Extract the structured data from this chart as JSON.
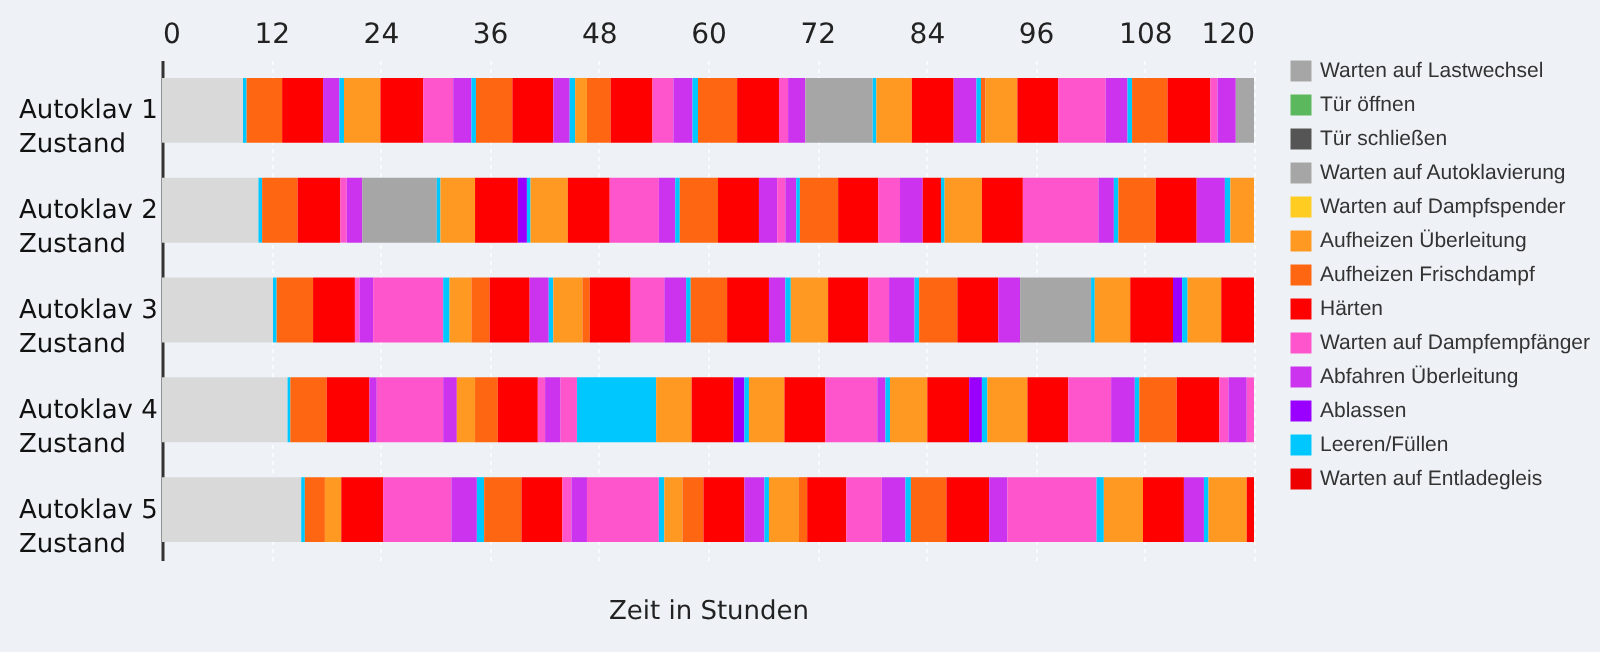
{
  "chart_data": {
    "type": "bar",
    "orientation": "horizontal",
    "stacked": true,
    "xlabel": "Zeit in Stunden",
    "categories": [
      "Autoklav 1\nZustand",
      "Autoklav 2\nZustand",
      "Autoklav 3\nZustand",
      "Autoklav 4\nZustand",
      "Autoklav 5\nZustand"
    ],
    "xlim": [
      0,
      120
    ],
    "xticks": [
      0,
      12,
      24,
      36,
      48,
      60,
      72,
      84,
      96,
      108,
      120
    ],
    "grid": "x",
    "legend": "right",
    "series": [
      {
        "color": "#d9d9d9",
        "values": [
          8.9,
          10.6,
          12.2,
          13.8,
          15.3
        ]
      },
      {
        "name": "Warten auf Lastwechsel",
        "color": "#a6a6a6",
        "values": [
          null,
          null,
          null,
          null,
          null
        ]
      },
      {
        "name": "Tür öffnen",
        "color": "#5cb85c",
        "values": [
          null,
          null,
          null,
          null,
          null
        ]
      },
      {
        "name": "Tür schließen",
        "color": "#555555",
        "values": [
          null,
          null,
          null,
          null,
          null
        ]
      },
      {
        "name": "Warten auf Autoklavierung",
        "color": "#a6a6a6",
        "values": [
          null,
          null,
          null,
          null,
          null
        ]
      },
      {
        "name": "Warten auf Dampfspender",
        "color": "#ffcc22",
        "values": [
          null,
          null,
          null,
          null,
          null
        ]
      },
      {
        "name": "Aufheizen Überleitung",
        "color": "#ff9922",
        "values": [
          null,
          null,
          null,
          null,
          null
        ]
      },
      {
        "name": "Aufheizen Frischdampf",
        "color": "#ff6611",
        "values": [
          null,
          null,
          null,
          null,
          null
        ]
      },
      {
        "name": "Härten",
        "color": "#ff0000",
        "values": [
          null,
          null,
          null,
          null,
          null
        ]
      },
      {
        "name": "Warten auf Dampfempfänger",
        "color": "#ff55cc",
        "values": [
          null,
          null,
          null,
          null,
          null
        ]
      },
      {
        "name": "Abfahren Überleitung",
        "color": "#cc33ee",
        "values": [
          null,
          null,
          null,
          null,
          null
        ]
      },
      {
        "name": "Ablassen",
        "color": "#9900ff",
        "values": [
          null,
          null,
          null,
          null,
          null
        ]
      },
      {
        "name": "Leeren/Füllen",
        "color": "#00c8ff",
        "values": [
          null,
          null,
          null,
          null,
          null
        ]
      },
      {
        "name": "Warten auf Entladegleis",
        "color": "#ee0000",
        "values": [
          null,
          null,
          null,
          null,
          null
        ]
      },
      {
        "color": "#00c8ff",
        "values": [
          0.4,
          null,
          null,
          null,
          null
        ]
      },
      {
        "color": "#ff6611",
        "values": [
          3.9,
          null,
          null,
          null,
          null
        ]
      },
      {
        "color": "#ff0000",
        "values": [
          4.5,
          null,
          null,
          null,
          null
        ]
      },
      {
        "color": "#cc33ee",
        "values": [
          1.8,
          null,
          null,
          null,
          null
        ]
      },
      {
        "color": "#00c8ff",
        "values": [
          0.5,
          null,
          null,
          null,
          null
        ]
      },
      {
        "color": "#ff9922",
        "values": [
          4.0,
          null,
          null,
          null,
          null
        ]
      },
      {
        "color": "#ff0000",
        "values": [
          4.7,
          null,
          null,
          null,
          null
        ]
      },
      {
        "color": "#ff55cc",
        "values": [
          3.3,
          null,
          null,
          null,
          null
        ]
      },
      {
        "color": "#cc33ee",
        "values": [
          2.0,
          null,
          null,
          null,
          null
        ]
      },
      {
        "color": "#00c8ff",
        "values": [
          0.5,
          null,
          null,
          null,
          null
        ]
      },
      {
        "color": "#ff6611",
        "values": [
          4.0,
          null,
          null,
          null,
          null
        ]
      },
      {
        "color": "#ff0000",
        "values": [
          4.5,
          null,
          null,
          null,
          null
        ]
      },
      {
        "color": "#cc33ee",
        "values": [
          1.8,
          null,
          null,
          null,
          null
        ]
      },
      {
        "color": "#00c8ff",
        "values": [
          0.6,
          null,
          null,
          null,
          null
        ]
      },
      {
        "color": "#ff9922",
        "values": [
          1.3,
          null,
          null,
          null,
          null
        ]
      },
      {
        "color": "#ff6611",
        "values": [
          2.6,
          null,
          null,
          null,
          null
        ]
      },
      {
        "color": "#ff0000",
        "values": [
          4.6,
          null,
          null,
          null,
          null
        ]
      },
      {
        "color": "#ff55cc",
        "values": [
          2.3,
          null,
          null,
          null,
          null
        ]
      },
      {
        "color": "#cc33ee",
        "values": [
          2.1,
          null,
          null,
          null,
          null
        ]
      },
      {
        "color": "#00c8ff",
        "values": [
          0.6,
          null,
          null,
          null,
          null
        ]
      },
      {
        "color": "#ff6611",
        "values": [
          4.3,
          null,
          null,
          null,
          null
        ]
      },
      {
        "color": "#ff0000",
        "values": [
          4.6,
          null,
          null,
          null,
          null
        ]
      },
      {
        "color": "#ff55cc",
        "values": [
          1.0,
          null,
          null,
          null,
          null
        ]
      },
      {
        "color": "#cc33ee",
        "values": [
          1.9,
          null,
          null,
          null,
          null
        ]
      },
      {
        "color": "#a6a6a6",
        "values": [
          7.4,
          null,
          null,
          null,
          null
        ]
      },
      {
        "color": "#00c8ff",
        "values": [
          0.4,
          null,
          null,
          null,
          null
        ]
      },
      {
        "color": "#ff9922",
        "values": [
          3.9,
          null,
          null,
          null,
          null
        ]
      },
      {
        "color": "#ff0000",
        "values": [
          4.6,
          null,
          null,
          null,
          null
        ]
      },
      {
        "color": "#cc33ee",
        "values": [
          2.5,
          null,
          null,
          null,
          null
        ]
      },
      {
        "color": "#00c8ff",
        "values": [
          0.5,
          null,
          null,
          null,
          null
        ]
      },
      {
        "color": "#ff6611",
        "values": [
          0.5,
          null,
          null,
          null,
          null
        ]
      },
      {
        "color": "#ff9922",
        "values": [
          3.5,
          null,
          null,
          null,
          null
        ]
      },
      {
        "color": "#ff0000",
        "values": [
          4.5,
          null,
          null,
          null,
          null
        ]
      },
      {
        "color": "#ff55cc",
        "values": [
          5.2,
          null,
          null,
          null,
          null
        ]
      },
      {
        "color": "#cc33ee",
        "values": [
          2.4,
          null,
          null,
          null,
          null
        ]
      },
      {
        "color": "#00c8ff",
        "values": [
          0.5,
          null,
          null,
          null,
          null
        ]
      },
      {
        "color": "#ff6611",
        "values": [
          3.9,
          null,
          null,
          null,
          null
        ]
      },
      {
        "color": "#ff0000",
        "values": [
          4.7,
          null,
          null,
          null,
          null
        ]
      },
      {
        "color": "#ff55cc",
        "values": [
          0.8,
          null,
          null,
          null,
          null
        ]
      },
      {
        "color": "#cc33ee",
        "values": [
          2.0,
          null,
          null,
          null,
          null
        ]
      },
      {
        "color": "#a6a6a6",
        "values": [
          2.0,
          null,
          null,
          null,
          null
        ]
      },
      {
        "color": "#00c8ff",
        "values": [
          null,
          0.4,
          null,
          null,
          null
        ]
      },
      {
        "color": "#ff6611",
        "values": [
          null,
          3.9,
          null,
          null,
          null
        ]
      },
      {
        "color": "#ff0000",
        "values": [
          null,
          4.7,
          null,
          null,
          null
        ]
      },
      {
        "color": "#ff55cc",
        "values": [
          null,
          0.7,
          null,
          null,
          null
        ]
      },
      {
        "color": "#cc33ee",
        "values": [
          null,
          1.7,
          null,
          null,
          null
        ]
      },
      {
        "color": "#a6a6a6",
        "values": [
          null,
          8.2,
          null,
          null,
          null
        ]
      },
      {
        "color": "#00c8ff",
        "values": [
          null,
          0.4,
          null,
          null,
          null
        ]
      },
      {
        "color": "#ff9922",
        "values": [
          null,
          3.8,
          null,
          null,
          null
        ]
      },
      {
        "color": "#ff0000",
        "values": [
          null,
          4.7,
          null,
          null,
          null
        ]
      },
      {
        "color": "#9900ff",
        "values": [
          null,
          1.0,
          null,
          null,
          null
        ]
      },
      {
        "color": "#00c8ff",
        "values": [
          null,
          0.4,
          null,
          null,
          null
        ]
      },
      {
        "color": "#ff9922",
        "values": [
          null,
          4.1,
          null,
          null,
          null
        ]
      },
      {
        "color": "#ff0000",
        "values": [
          null,
          4.6,
          null,
          null,
          null
        ]
      },
      {
        "color": "#ff55cc",
        "values": [
          null,
          5.4,
          null,
          null,
          null
        ]
      },
      {
        "color": "#cc33ee",
        "values": [
          null,
          1.8,
          null,
          null,
          null
        ]
      },
      {
        "color": "#00c8ff",
        "values": [
          null,
          0.5,
          null,
          null,
          null
        ]
      },
      {
        "color": "#ff6611",
        "values": [
          null,
          4.2,
          null,
          null,
          null
        ]
      },
      {
        "color": "#ff0000",
        "values": [
          null,
          4.5,
          null,
          null,
          null
        ]
      },
      {
        "color": "#cc33ee",
        "values": [
          null,
          2.0,
          null,
          null,
          null
        ]
      },
      {
        "color": "#ff55cc",
        "values": [
          null,
          0.9,
          null,
          null,
          null
        ]
      },
      {
        "color": "#cc33ee",
        "values": [
          null,
          1.2,
          null,
          null,
          null
        ]
      },
      {
        "color": "#00c8ff",
        "values": [
          null,
          0.4,
          null,
          null,
          null
        ]
      },
      {
        "color": "#ff6611",
        "values": [
          null,
          4.2,
          null,
          null,
          null
        ]
      },
      {
        "color": "#ff0000",
        "values": [
          null,
          4.4,
          null,
          null,
          null
        ]
      },
      {
        "color": "#ff55cc",
        "values": [
          null,
          2.4,
          null,
          null,
          null
        ]
      },
      {
        "color": "#cc33ee",
        "values": [
          null,
          2.5,
          null,
          null,
          null
        ]
      },
      {
        "color": "#ff0000",
        "values": [
          null,
          2.0,
          null,
          null,
          null
        ]
      },
      {
        "color": "#00c8ff",
        "values": [
          null,
          0.4,
          null,
          null,
          null
        ]
      },
      {
        "color": "#ff9922",
        "values": [
          null,
          4.1,
          null,
          null,
          null
        ]
      },
      {
        "color": "#ff0000",
        "values": [
          null,
          4.5,
          null,
          null,
          null
        ]
      },
      {
        "color": "#ff55cc",
        "values": [
          null,
          8.3,
          null,
          null,
          null
        ]
      },
      {
        "color": "#cc33ee",
        "values": [
          null,
          1.7,
          null,
          null,
          null
        ]
      },
      {
        "color": "#00c8ff",
        "values": [
          null,
          0.5,
          null,
          null,
          null
        ]
      },
      {
        "color": "#ff6611",
        "values": [
          null,
          4.1,
          null,
          null,
          null
        ]
      },
      {
        "color": "#ff0000",
        "values": [
          null,
          4.5,
          null,
          null,
          null
        ]
      },
      {
        "color": "#cc33ee",
        "values": [
          null,
          3.1,
          null,
          null,
          null
        ]
      },
      {
        "color": "#00c8ff",
        "values": [
          null,
          0.6,
          null,
          null,
          null
        ]
      },
      {
        "color": "#ff9922",
        "values": [
          null,
          2.6,
          null,
          null,
          null
        ]
      },
      {
        "color": "#00c8ff",
        "values": [
          null,
          null,
          0.4,
          null,
          null
        ]
      },
      {
        "color": "#ff6611",
        "values": [
          null,
          null,
          4.0,
          null,
          null
        ]
      },
      {
        "color": "#ff0000",
        "values": [
          null,
          null,
          4.6,
          null,
          null
        ]
      },
      {
        "color": "#ff55cc",
        "values": [
          null,
          null,
          0.5,
          null,
          null
        ]
      },
      {
        "color": "#cc33ee",
        "values": [
          null,
          null,
          1.5,
          null,
          null
        ]
      },
      {
        "color": "#ff55cc",
        "values": [
          null,
          null,
          7.7,
          null,
          null
        ]
      },
      {
        "color": "#00c8ff",
        "values": [
          null,
          null,
          0.7,
          null,
          null
        ]
      },
      {
        "color": "#ff9922",
        "values": [
          null,
          null,
          2.4,
          null,
          null
        ]
      },
      {
        "color": "#ff6611",
        "values": [
          null,
          null,
          2.0,
          null,
          null
        ]
      },
      {
        "color": "#ff0000",
        "values": [
          null,
          null,
          4.4,
          null,
          null
        ]
      },
      {
        "color": "#cc33ee",
        "values": [
          null,
          null,
          2.1,
          null,
          null
        ]
      },
      {
        "color": "#00c8ff",
        "values": [
          null,
          null,
          0.5,
          null,
          null
        ]
      },
      {
        "color": "#ff9922",
        "values": [
          null,
          null,
          3.2,
          null,
          null
        ]
      },
      {
        "color": "#ff6611",
        "values": [
          null,
          null,
          0.8,
          null,
          null
        ]
      },
      {
        "color": "#ff0000",
        "values": [
          null,
          null,
          4.5,
          null,
          null
        ]
      },
      {
        "color": "#ff55cc",
        "values": [
          null,
          null,
          3.7,
          null,
          null
        ]
      },
      {
        "color": "#cc33ee",
        "values": [
          null,
          null,
          2.4,
          null,
          null
        ]
      },
      {
        "color": "#00c8ff",
        "values": [
          null,
          null,
          0.5,
          null,
          null
        ]
      },
      {
        "color": "#ff6611",
        "values": [
          null,
          null,
          4.0,
          null,
          null
        ]
      },
      {
        "color": "#ff0000",
        "values": [
          null,
          null,
          4.6,
          null,
          null
        ]
      },
      {
        "color": "#cc33ee",
        "values": [
          null,
          null,
          1.8,
          null,
          null
        ]
      },
      {
        "color": "#00c8ff",
        "values": [
          null,
          null,
          0.6,
          null,
          null
        ]
      },
      {
        "color": "#ff9922",
        "values": [
          null,
          null,
          4.1,
          null,
          null
        ]
      },
      {
        "color": "#ff0000",
        "values": [
          null,
          null,
          4.4,
          null,
          null
        ]
      },
      {
        "color": "#ff55cc",
        "values": [
          null,
          null,
          2.3,
          null,
          null
        ]
      },
      {
        "color": "#cc33ee",
        "values": [
          null,
          null,
          2.8,
          null,
          null
        ]
      },
      {
        "color": "#00c8ff",
        "values": [
          null,
          null,
          0.5,
          null,
          null
        ]
      },
      {
        "color": "#ff6611",
        "values": [
          null,
          null,
          4.2,
          null,
          null
        ]
      },
      {
        "color": "#ff0000",
        "values": [
          null,
          null,
          4.5,
          null,
          null
        ]
      },
      {
        "color": "#cc33ee",
        "values": [
          null,
          null,
          2.4,
          null,
          null
        ]
      },
      {
        "color": "#a6a6a6",
        "values": [
          null,
          null,
          7.8,
          null,
          null
        ]
      },
      {
        "color": "#00c8ff",
        "values": [
          null,
          null,
          0.4,
          null,
          null
        ]
      },
      {
        "color": "#ff9922",
        "values": [
          null,
          null,
          3.9,
          null,
          null
        ]
      },
      {
        "color": "#ff0000",
        "values": [
          null,
          null,
          4.7,
          null,
          null
        ]
      },
      {
        "color": "#9900ff",
        "values": [
          null,
          null,
          1.0,
          null,
          null
        ]
      },
      {
        "color": "#00c8ff",
        "values": [
          null,
          null,
          0.6,
          null,
          null
        ]
      },
      {
        "color": "#ff9922",
        "values": [
          null,
          null,
          3.7,
          null,
          null
        ]
      },
      {
        "color": "#ff0000",
        "values": [
          null,
          null,
          3.6,
          null,
          null
        ]
      },
      {
        "color": "#00c8ff",
        "values": [
          null,
          null,
          null,
          0.3,
          null
        ]
      },
      {
        "color": "#ff6611",
        "values": [
          null,
          null,
          null,
          4.0,
          null
        ]
      },
      {
        "color": "#ff0000",
        "values": [
          null,
          null,
          null,
          4.7,
          null
        ]
      },
      {
        "color": "#cc33ee",
        "values": [
          null,
          null,
          null,
          0.8,
          null
        ]
      },
      {
        "color": "#ff55cc",
        "values": [
          null,
          null,
          null,
          7.3,
          null
        ]
      },
      {
        "color": "#cc33ee",
        "values": [
          null,
          null,
          null,
          1.5,
          null
        ]
      },
      {
        "color": "#ff9922",
        "values": [
          null,
          null,
          null,
          2.0,
          null
        ]
      },
      {
        "color": "#ff6611",
        "values": [
          null,
          null,
          null,
          2.5,
          null
        ]
      },
      {
        "color": "#ff0000",
        "values": [
          null,
          null,
          null,
          4.4,
          null
        ]
      },
      {
        "color": "#ff55cc",
        "values": [
          null,
          null,
          null,
          0.8,
          null
        ]
      },
      {
        "color": "#cc33ee",
        "values": [
          null,
          null,
          null,
          1.7,
          null
        ]
      },
      {
        "color": "#ff55cc",
        "values": [
          null,
          null,
          null,
          1.8,
          null
        ]
      },
      {
        "color": "#00c8ff",
        "values": [
          null,
          null,
          null,
          8.7,
          null
        ]
      },
      {
        "color": "#ff9922",
        "values": [
          null,
          null,
          null,
          3.9,
          null
        ]
      },
      {
        "color": "#ff0000",
        "values": [
          null,
          null,
          null,
          4.6,
          null
        ]
      },
      {
        "color": "#9900ff",
        "values": [
          null,
          null,
          null,
          1.2,
          null
        ]
      },
      {
        "color": "#00c8ff",
        "values": [
          null,
          null,
          null,
          0.5,
          null
        ]
      },
      {
        "color": "#ff9922",
        "values": [
          null,
          null,
          null,
          3.9,
          null
        ]
      },
      {
        "color": "#ff0000",
        "values": [
          null,
          null,
          null,
          4.5,
          null
        ]
      },
      {
        "color": "#ff55cc",
        "values": [
          null,
          null,
          null,
          5.7,
          null
        ]
      },
      {
        "color": "#cc33ee",
        "values": [
          null,
          null,
          null,
          0.9,
          null
        ]
      },
      {
        "color": "#00c8ff",
        "values": [
          null,
          null,
          null,
          0.5,
          null
        ]
      },
      {
        "color": "#ff9922",
        "values": [
          null,
          null,
          null,
          4.1,
          null
        ]
      },
      {
        "color": "#ff0000",
        "values": [
          null,
          null,
          null,
          4.6,
          null
        ]
      },
      {
        "color": "#9900ff",
        "values": [
          null,
          null,
          null,
          1.4,
          null
        ]
      },
      {
        "color": "#00c8ff",
        "values": [
          null,
          null,
          null,
          0.6,
          null
        ]
      },
      {
        "color": "#ff9922",
        "values": [
          null,
          null,
          null,
          4.4,
          null
        ]
      },
      {
        "color": "#ff0000",
        "values": [
          null,
          null,
          null,
          4.5,
          null
        ]
      },
      {
        "color": "#ff55cc",
        "values": [
          null,
          null,
          null,
          4.7,
          null
        ]
      },
      {
        "color": "#cc33ee",
        "values": [
          null,
          null,
          null,
          2.6,
          null
        ]
      },
      {
        "color": "#00c8ff",
        "values": [
          null,
          null,
          null,
          0.5,
          null
        ]
      },
      {
        "color": "#ff6611",
        "values": [
          null,
          null,
          null,
          4.1,
          null
        ]
      },
      {
        "color": "#ff0000",
        "values": [
          null,
          null,
          null,
          4.7,
          null
        ]
      },
      {
        "color": "#ff55cc",
        "values": [
          null,
          null,
          null,
          1.0,
          null
        ]
      },
      {
        "color": "#cc33ee",
        "values": [
          null,
          null,
          null,
          2.0,
          null
        ]
      },
      {
        "color": "#ff55cc",
        "values": [
          null,
          null,
          null,
          0.8,
          null
        ]
      },
      {
        "color": "#00c8ff",
        "values": [
          null,
          null,
          null,
          null,
          0.4
        ]
      },
      {
        "color": "#ff6611",
        "values": [
          null,
          null,
          null,
          null,
          2.2
        ]
      },
      {
        "color": "#ff9922",
        "values": [
          null,
          null,
          null,
          null,
          1.8
        ]
      },
      {
        "color": "#ff0000",
        "values": [
          null,
          null,
          null,
          null,
          4.6
        ]
      },
      {
        "color": "#ff55cc",
        "values": [
          null,
          null,
          null,
          null,
          7.5
        ]
      },
      {
        "color": "#cc33ee",
        "values": [
          null,
          null,
          null,
          null,
          2.8
        ]
      },
      {
        "color": "#00c8ff",
        "values": [
          null,
          null,
          null,
          null,
          0.8
        ]
      },
      {
        "color": "#ff6611",
        "values": [
          null,
          null,
          null,
          null,
          4.1
        ]
      },
      {
        "color": "#ff0000",
        "values": [
          null,
          null,
          null,
          null,
          4.5
        ]
      },
      {
        "color": "#ff55cc",
        "values": [
          null,
          null,
          null,
          null,
          1.0
        ]
      },
      {
        "color": "#cc33ee",
        "values": [
          null,
          null,
          null,
          null,
          1.7
        ]
      },
      {
        "color": "#ff55cc",
        "values": [
          null,
          null,
          null,
          null,
          7.9
        ]
      },
      {
        "color": "#00c8ff",
        "values": [
          null,
          null,
          null,
          null,
          0.6
        ]
      },
      {
        "color": "#ff9922",
        "values": [
          null,
          null,
          null,
          null,
          2.0
        ]
      },
      {
        "color": "#ff6611",
        "values": [
          null,
          null,
          null,
          null,
          2.3
        ]
      },
      {
        "color": "#ff0000",
        "values": [
          null,
          null,
          null,
          null,
          4.5
        ]
      },
      {
        "color": "#cc33ee",
        "values": [
          null,
          null,
          null,
          null,
          2.2
        ]
      },
      {
        "color": "#00c8ff",
        "values": [
          null,
          null,
          null,
          null,
          0.5
        ]
      },
      {
        "color": "#ff9922",
        "values": [
          null,
          null,
          null,
          null,
          3.3
        ]
      },
      {
        "color": "#ff6611",
        "values": [
          null,
          null,
          null,
          null,
          0.9
        ]
      },
      {
        "color": "#ff0000",
        "values": [
          null,
          null,
          null,
          null,
          4.3
        ]
      },
      {
        "color": "#ff55cc",
        "values": [
          null,
          null,
          null,
          null,
          3.9
        ]
      },
      {
        "color": "#cc33ee",
        "values": [
          null,
          null,
          null,
          null,
          2.6
        ]
      },
      {
        "color": "#00c8ff",
        "values": [
          null,
          null,
          null,
          null,
          0.6
        ]
      },
      {
        "color": "#ff6611",
        "values": [
          null,
          null,
          null,
          null,
          3.9
        ]
      },
      {
        "color": "#ff0000",
        "values": [
          null,
          null,
          null,
          null,
          4.7
        ]
      },
      {
        "color": "#cc33ee",
        "values": [
          null,
          null,
          null,
          null,
          2.0
        ]
      },
      {
        "color": "#ff55cc",
        "values": [
          null,
          null,
          null,
          null,
          9.8
        ]
      },
      {
        "color": "#00c8ff",
        "values": [
          null,
          null,
          null,
          null,
          0.8
        ]
      },
      {
        "color": "#ff9922",
        "values": [
          null,
          null,
          null,
          null,
          4.3
        ]
      },
      {
        "color": "#ff0000",
        "values": [
          null,
          null,
          null,
          null,
          4.5
        ]
      },
      {
        "color": "#cc33ee",
        "values": [
          null,
          null,
          null,
          null,
          2.2
        ]
      },
      {
        "color": "#00c8ff",
        "values": [
          null,
          null,
          null,
          null,
          0.5
        ]
      },
      {
        "color": "#ff9922",
        "values": [
          null,
          null,
          null,
          null,
          4.2
        ]
      },
      {
        "color": "#ff0000",
        "values": [
          null,
          null,
          null,
          null,
          0.8
        ]
      }
    ]
  }
}
